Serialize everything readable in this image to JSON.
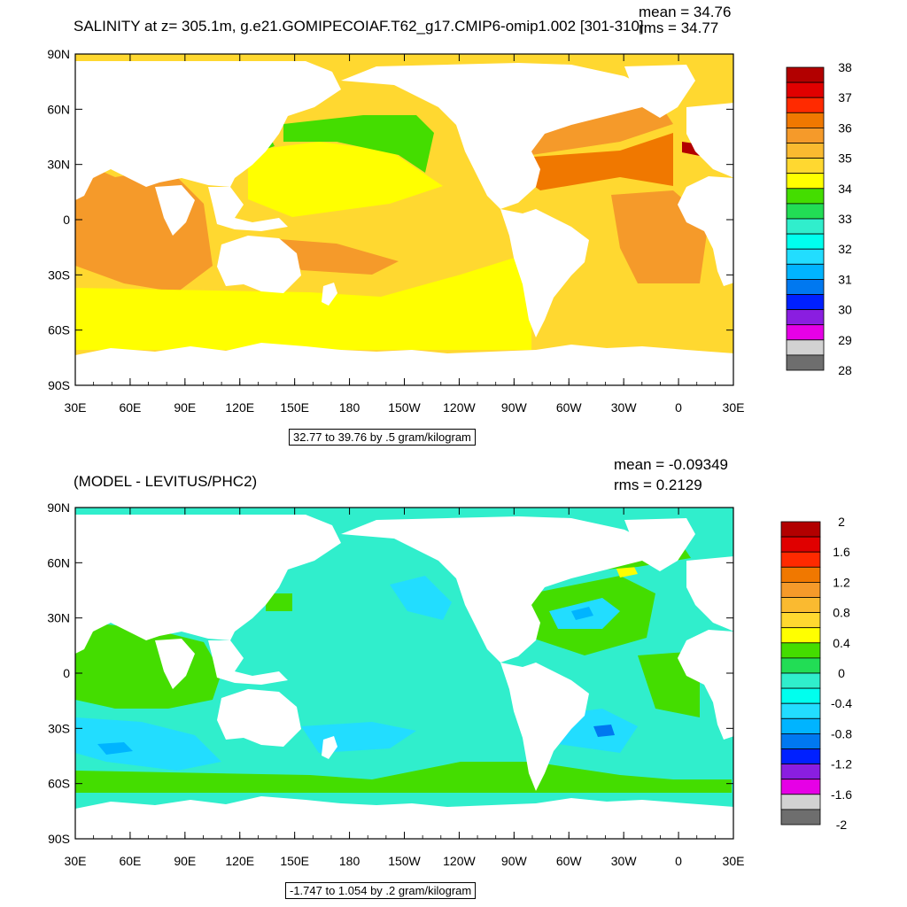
{
  "panels": [
    {
      "title": "SALINITY at z= 305.1m, g.e21.GOMIPECOIAF.T62_g17.CMIP6-omip1.002 [301-310]",
      "mean": "mean = 34.76",
      "rms": "rms = 34.77",
      "note": "32.77 to 39.76 by .5 gram/kilogram",
      "colorbar_labels": [
        "38",
        "37",
        "36",
        "35",
        "34",
        "33",
        "32",
        "31",
        "30",
        "29",
        "28"
      ],
      "colorbar_colors": [
        "#b20000",
        "#e00000",
        "#ff2a00",
        "#f07800",
        "#f59a2a",
        "#faba30",
        "#ffd830",
        "#ffff00",
        "#44dd00",
        "#22dd55",
        "#30eecc",
        "#00ffee",
        "#22ddff",
        "#00b4ff",
        "#0078f0",
        "#0020ff",
        "#8a1ee0",
        "#e600e6",
        "#d2d2d2",
        "#6e6e6e"
      ]
    },
    {
      "title": "(MODEL - LEVITUS/PHC2)",
      "mean": "mean = -0.09349",
      "rms": "rms = 0.2129",
      "note": "-1.747 to 1.054 by .2 gram/kilogram",
      "colorbar_labels": [
        "2",
        "1.6",
        "1.2",
        "0.8",
        "0.4",
        "0",
        "-0.4",
        "-0.8",
        "-1.2",
        "-1.6",
        "-2"
      ],
      "colorbar_colors": [
        "#b20000",
        "#e00000",
        "#ff2a00",
        "#f07800",
        "#f59a2a",
        "#faba30",
        "#ffd830",
        "#ffff00",
        "#44dd00",
        "#22dd55",
        "#30eecc",
        "#00ffee",
        "#22ddff",
        "#00b4ff",
        "#0078f0",
        "#0020ff",
        "#8a1ee0",
        "#e600e6",
        "#d2d2d2",
        "#6e6e6e"
      ]
    }
  ],
  "axes": {
    "lat_labels": [
      "90N",
      "60N",
      "30N",
      "0",
      "30S",
      "60S",
      "90S"
    ],
    "lon_labels": [
      "30E",
      "60E",
      "90E",
      "120E",
      "150E",
      "180",
      "150W",
      "120W",
      "90W",
      "60W",
      "30W",
      "0",
      "30E"
    ]
  },
  "colors": {
    "land": "#ffffff",
    "ocean_top": "#ffd830",
    "ocean_bottom": "#30eecc"
  }
}
